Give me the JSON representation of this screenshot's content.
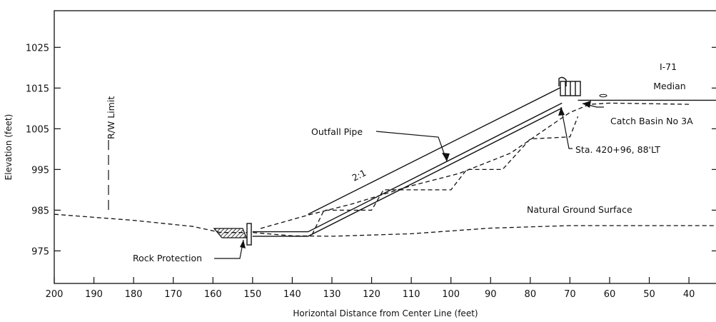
{
  "axes": {
    "x_title": "Horizontal Distance from Center Line (feet)",
    "y_title": "Elevation (feet)"
  },
  "chart_data": {
    "type": "diagram",
    "x_unit": "feet",
    "y_unit": "feet",
    "xlim": [
      200,
      33
    ],
    "ylim": [
      967,
      1034
    ],
    "x_ticks": [
      200,
      190,
      180,
      170,
      160,
      150,
      140,
      130,
      120,
      110,
      100,
      90,
      80,
      70,
      60,
      50,
      40
    ],
    "y_ticks": [
      975,
      985,
      995,
      1005,
      1015,
      1025
    ],
    "series": [
      {
        "name": "Natural Ground Surface",
        "style": "dashed",
        "points": [
          [
            200,
            984
          ],
          [
            180,
            982.5
          ],
          [
            165,
            981
          ],
          [
            158,
            979.5
          ],
          [
            150,
            979.5
          ],
          [
            140,
            978.7
          ],
          [
            130,
            978.6
          ],
          [
            110,
            979.2
          ],
          [
            90,
            980.6
          ],
          [
            70,
            981.2
          ],
          [
            33,
            981.2
          ]
        ]
      },
      {
        "style": "solid",
        "points": [
          [
            136,
            984
          ],
          [
            72,
            1015.3
          ]
        ]
      },
      {
        "style": "solid",
        "points": [
          [
            150,
            979.7
          ],
          [
            136,
            979.7
          ],
          [
            72,
            1011.3
          ]
        ]
      },
      {
        "style": "solid",
        "points": [
          [
            150,
            978.6
          ],
          [
            136,
            978.6
          ],
          [
            72,
            1010.1
          ]
        ]
      },
      {
        "style": "solid",
        "points": [
          [
            68,
            1012
          ],
          [
            33,
            1012
          ]
        ]
      },
      {
        "style": "dashed",
        "points": [
          [
            148,
            980.5
          ],
          [
            136,
            983.8
          ],
          [
            125,
            986.5
          ],
          [
            110,
            991
          ],
          [
            98,
            994
          ],
          [
            85,
            999
          ],
          [
            70,
            1009
          ],
          [
            65,
            1011
          ],
          [
            60,
            1011.3
          ],
          [
            40,
            1011
          ]
        ]
      },
      {
        "style": "dashed",
        "points": [
          [
            135,
            979
          ],
          [
            132,
            985
          ],
          [
            120,
            985
          ],
          [
            117,
            990
          ],
          [
            100,
            990
          ],
          [
            96,
            995
          ],
          [
            87,
            995
          ],
          [
            80,
            1002.5
          ],
          [
            70,
            1003
          ],
          [
            68,
            1008
          ]
        ]
      }
    ],
    "annotations": [
      {
        "text": "R/W Limit",
        "x": 186
      },
      {
        "text": "Outfall Pipe"
      },
      {
        "text": "2:1"
      },
      {
        "text": "I-71"
      },
      {
        "text": "Median"
      },
      {
        "text": "Catch Basin No 3A"
      },
      {
        "text": "Sta. 420+96, 88'LT"
      },
      {
        "text": "Natural Ground Surface"
      },
      {
        "text": "Rock Protection"
      }
    ]
  },
  "labels": {
    "rw_limit": "R/W Limit",
    "outfall_pipe": "Outfall Pipe",
    "slope": "2:1",
    "i71": "I-71",
    "median": "Median",
    "catch_basin": "Catch Basin No 3A",
    "station": "Sta. 420+96, 88'LT",
    "natural_ground": "Natural Ground Surface",
    "rock_protection": "Rock Protection"
  }
}
